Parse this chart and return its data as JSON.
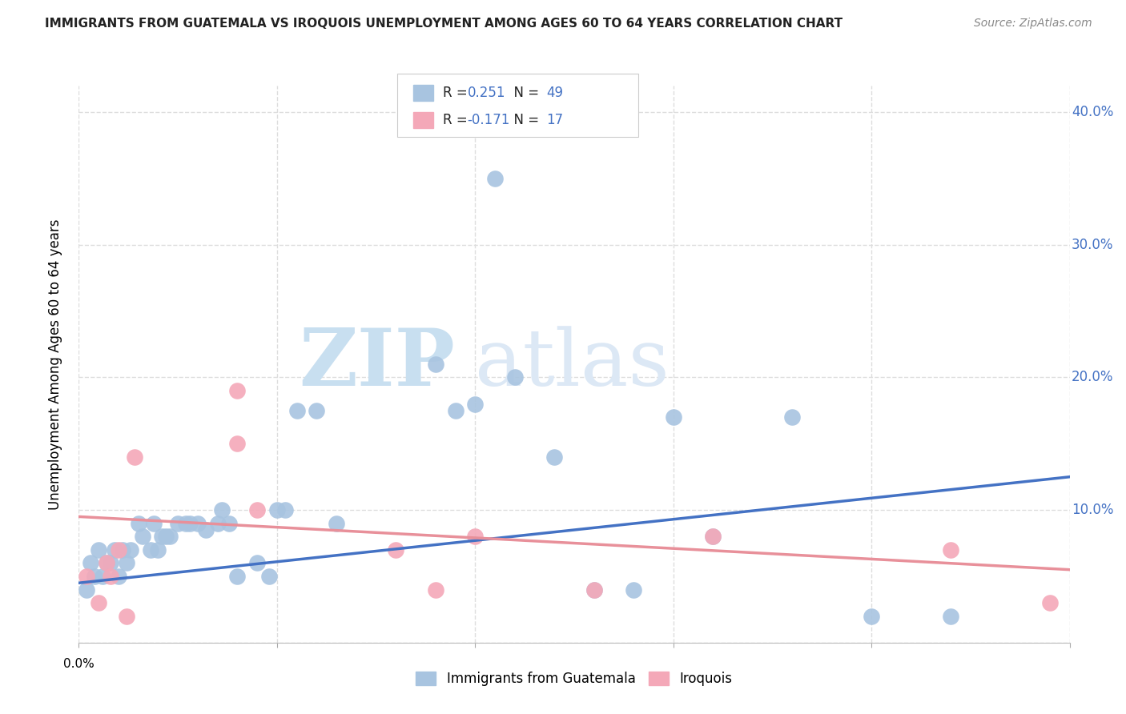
{
  "title": "IMMIGRANTS FROM GUATEMALA VS IROQUOIS UNEMPLOYMENT AMONG AGES 60 TO 64 YEARS CORRELATION CHART",
  "source": "Source: ZipAtlas.com",
  "ylabel": "Unemployment Among Ages 60 to 64 years",
  "y_ticks": [
    0.0,
    0.1,
    0.2,
    0.3,
    0.4
  ],
  "y_tick_labels": [
    "",
    "10.0%",
    "20.0%",
    "30.0%",
    "40.0%"
  ],
  "xlim": [
    0.0,
    0.25
  ],
  "ylim": [
    0.0,
    0.42
  ],
  "legend_blue_label": "Immigrants from Guatemala",
  "legend_pink_label": "Iroquois",
  "R_blue": "0.251",
  "N_blue": "49",
  "R_pink": "-0.171",
  "N_pink": "17",
  "blue_color": "#a8c4e0",
  "pink_color": "#f4a8b8",
  "line_blue": "#4472c4",
  "line_pink": "#e8909a",
  "blue_scatter_x": [
    0.002,
    0.003,
    0.004,
    0.005,
    0.006,
    0.007,
    0.008,
    0.009,
    0.01,
    0.011,
    0.012,
    0.013,
    0.015,
    0.016,
    0.018,
    0.019,
    0.02,
    0.021,
    0.022,
    0.023,
    0.025,
    0.027,
    0.028,
    0.03,
    0.032,
    0.035,
    0.036,
    0.038,
    0.04,
    0.045,
    0.048,
    0.05,
    0.052,
    0.055,
    0.06,
    0.065,
    0.09,
    0.095,
    0.1,
    0.105,
    0.11,
    0.12,
    0.13,
    0.14,
    0.15,
    0.16,
    0.18,
    0.2,
    0.22
  ],
  "blue_scatter_y": [
    0.04,
    0.06,
    0.05,
    0.07,
    0.05,
    0.06,
    0.06,
    0.07,
    0.05,
    0.07,
    0.06,
    0.07,
    0.09,
    0.08,
    0.07,
    0.09,
    0.07,
    0.08,
    0.08,
    0.08,
    0.09,
    0.09,
    0.09,
    0.09,
    0.085,
    0.09,
    0.1,
    0.09,
    0.05,
    0.06,
    0.05,
    0.1,
    0.1,
    0.175,
    0.175,
    0.09,
    0.21,
    0.175,
    0.18,
    0.35,
    0.2,
    0.14,
    0.04,
    0.04,
    0.17,
    0.08,
    0.17,
    0.02,
    0.02
  ],
  "pink_scatter_x": [
    0.002,
    0.005,
    0.007,
    0.008,
    0.01,
    0.012,
    0.014,
    0.04,
    0.04,
    0.045,
    0.08,
    0.09,
    0.1,
    0.13,
    0.16,
    0.22,
    0.245
  ],
  "pink_scatter_y": [
    0.05,
    0.03,
    0.06,
    0.05,
    0.07,
    0.02,
    0.14,
    0.19,
    0.15,
    0.1,
    0.07,
    0.04,
    0.08,
    0.04,
    0.08,
    0.07,
    0.03
  ],
  "blue_trend_x": [
    0.0,
    0.25
  ],
  "blue_trend_y": [
    0.045,
    0.125
  ],
  "pink_trend_x": [
    0.0,
    0.25
  ],
  "pink_trend_y": [
    0.095,
    0.055
  ],
  "watermark_zip": "ZIP",
  "watermark_atlas": "atlas",
  "background_color": "#ffffff",
  "grid_color": "#dddddd",
  "x_tick_positions": [
    0.0,
    0.05,
    0.1,
    0.15,
    0.2,
    0.25
  ]
}
